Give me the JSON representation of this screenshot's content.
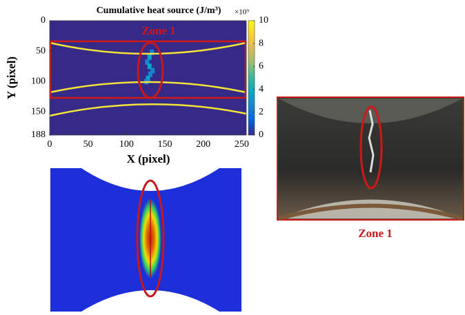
{
  "chart_data": {
    "type": "heatmap",
    "title": "Cumulative heat source (J/m³)",
    "colorbar_exponent": "×10⁹",
    "xlabel": "X (pixel)",
    "ylabel": "Y (pixel)",
    "xlim": [
      0,
      256
    ],
    "xticks": [
      0,
      50,
      100,
      150,
      200,
      250
    ],
    "ylim": [
      0,
      188
    ],
    "yticks": [
      0,
      50,
      100,
      150,
      188
    ],
    "clim": [
      0,
      10
    ],
    "colorbar_ticks": [
      0,
      2,
      4,
      6,
      8,
      10
    ],
    "background_value": 0,
    "hotspot": {
      "x": [
        133,
        130,
        127,
        130,
        134,
        131,
        128,
        126
      ],
      "y": [
        52,
        60,
        68,
        75,
        82,
        88,
        95,
        100
      ],
      "values": [
        3,
        4,
        3,
        4,
        3,
        3,
        4,
        3
      ]
    },
    "annotation": "Zone 1"
  },
  "photo_caption": "Zone 1"
}
